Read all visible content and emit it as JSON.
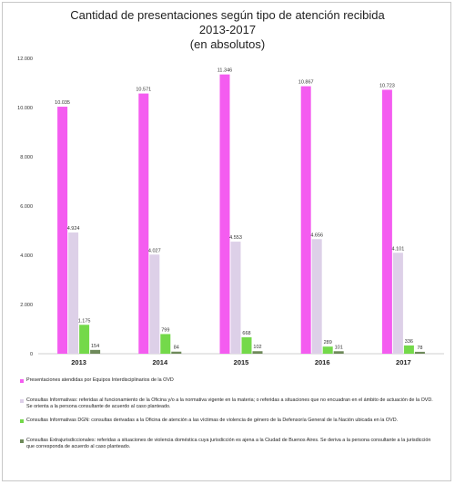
{
  "chart_data": {
    "type": "bar",
    "title_lines": [
      "Cantidad de presentaciones según tipo de atención recibida",
      "2013-2017",
      "(en absolutos)"
    ],
    "categories": [
      "2013",
      "2014",
      "2015",
      "2016",
      "2017"
    ],
    "ylim": [
      0,
      12000
    ],
    "yticks": [
      0,
      2000,
      4000,
      6000,
      8000,
      10000,
      12000
    ],
    "ytick_labels": [
      "0",
      "2.000",
      "4.000",
      "6.000",
      "8.000",
      "10.000",
      "12.000"
    ],
    "grid": false,
    "legend_position": "bottom",
    "series": [
      {
        "name": "Presentaciones atendidas por Equipos Interdisciplinarios de la OVD",
        "color": "#f45cf0",
        "values": [
          10035,
          10571,
          11346,
          10867,
          10723
        ],
        "labels": [
          "10.035",
          "10.571",
          "11.346",
          "10.867",
          "10.723"
        ]
      },
      {
        "name": "Consultas Informativas: referidas al funcionamiento de la Oficina y/o a la normativa vigente en la materia; o referidas a situaciones que no encuadran en el ámbito de actuación de la OVD. Se orienta a la persona consultante de acuerdo al caso planteado.",
        "color": "#ddd0e8",
        "values": [
          4924,
          4027,
          4553,
          4656,
          4101
        ],
        "labels": [
          "4.924",
          "4.027",
          "4.553",
          "4.656",
          "4.101"
        ]
      },
      {
        "name": "Consultas Informativas DGN: consultas derivadas a la Oficina de atención a las víctimas de violencia de género de la Defensoría General de la Nación ubicada en la OVD.",
        "color": "#74d94a",
        "values": [
          1175,
          799,
          668,
          289,
          336
        ],
        "labels": [
          "1.175",
          "799",
          "668",
          "289",
          "336"
        ]
      },
      {
        "name": "Consultas Extrajurisdiccionales: referidas a situaciones de violencia doméstica cuya jurisdicción es ajena a la Ciudad de Buenos Aires. Se deriva a la persona consultante a la jurisdicción que corresponda de acuerdo al caso planteado.",
        "color": "#6e8a5a",
        "values": [
          154,
          84,
          102,
          101,
          78
        ],
        "labels": [
          "154",
          "84",
          "102",
          "101",
          "78"
        ]
      }
    ]
  }
}
